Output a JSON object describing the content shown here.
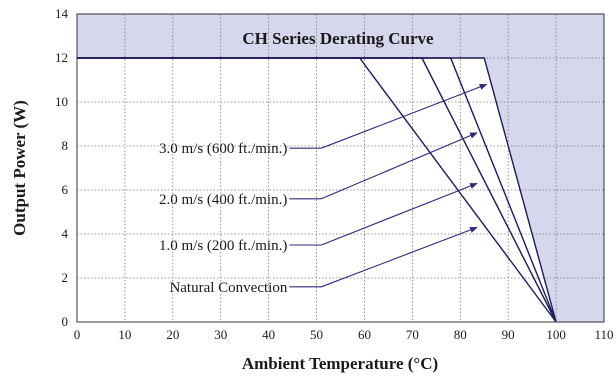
{
  "chart_data": {
    "type": "line",
    "title": "CH Series Derating Curve",
    "xlabel": "Ambient Temperature (°C)",
    "ylabel": "Output Power (W)",
    "xlim": [
      0,
      110
    ],
    "ylim": [
      0,
      14
    ],
    "xticks": [
      0,
      10,
      20,
      30,
      40,
      50,
      60,
      70,
      80,
      90,
      100,
      110
    ],
    "yticks": [
      0,
      2,
      4,
      6,
      8,
      10,
      12,
      14
    ],
    "grid": true,
    "series": [
      {
        "name": "Natural Convection",
        "x": [
          0,
          59,
          100
        ],
        "y": [
          12,
          12,
          0
        ]
      },
      {
        "name": "1.0 m/s (200 ft./min.)",
        "x": [
          0,
          72,
          100
        ],
        "y": [
          12,
          12,
          0
        ]
      },
      {
        "name": "2.0 m/s (400 ft./min.)",
        "x": [
          0,
          78,
          100
        ],
        "y": [
          12,
          12,
          0
        ]
      },
      {
        "name": "3.0 m/s (600 ft./min.)",
        "x": [
          0,
          85,
          100
        ],
        "y": [
          12,
          12,
          0
        ]
      }
    ],
    "annotation_arrows": [
      {
        "label_series": 3,
        "label_at": [
          51,
          7.9
        ],
        "tip": [
          85.5,
          10.8
        ]
      },
      {
        "label_series": 2,
        "label_at": [
          51,
          5.6
        ],
        "tip": [
          83.5,
          8.6
        ]
      },
      {
        "label_series": 1,
        "label_at": [
          51,
          3.5
        ],
        "tip": [
          83.5,
          6.3
        ]
      },
      {
        "label_series": 0,
        "label_at": [
          51,
          1.6
        ],
        "tip": [
          83.5,
          4.3
        ]
      }
    ],
    "colors": {
      "shaded_region": "#d6d6ec",
      "plot_background": "#ffffff",
      "curve": "#1e1a5a",
      "arrow": "#2e2a78",
      "grid": "#777777",
      "text": "#1a1a1a"
    }
  }
}
